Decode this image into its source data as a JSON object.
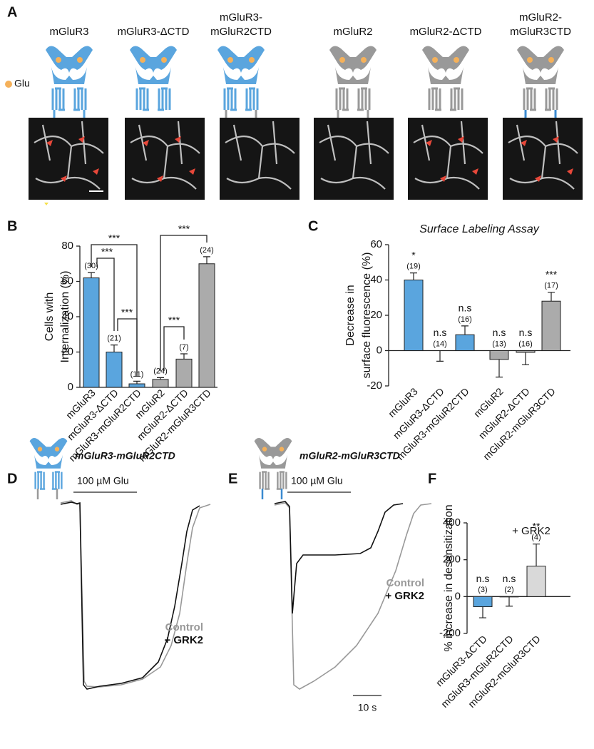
{
  "figure": {
    "panel_labels": [
      "A",
      "B",
      "C",
      "D",
      "E",
      "F"
    ]
  },
  "panel_a": {
    "constructs": [
      [
        "mGluR3"
      ],
      [
        "mGluR3-ΔCTD"
      ],
      [
        "mGluR3-",
        "mGluR2CTD"
      ],
      [
        "mGluR2"
      ],
      [
        "mGluR2-ΔCTD"
      ],
      [
        "mGluR2-",
        "mGluR3CTD"
      ]
    ],
    "legend": "Glu"
  },
  "chart_data": [
    {
      "type": "bar",
      "y_label": [
        "Cells with",
        "Internalization (%)"
      ],
      "categories": [
        "mGluR3",
        "mGluR3-ΔCTD",
        "mGluR3-mGluR2CTD",
        "mGluR2",
        "mGluR2-ΔCTD",
        "mGluR2-mGluR3CTD"
      ],
      "values": [
        62,
        20,
        2,
        4.5,
        16,
        70
      ],
      "errors": [
        3,
        4,
        1.5,
        1,
        3,
        4
      ],
      "colors": [
        "#5aa5de",
        "#5aa5de",
        "#5aa5de",
        "#ababab",
        "#ababab",
        "#ababab"
      ],
      "n_labels": [
        "(30)",
        "(21)",
        "(11)",
        "(24)",
        "(7)",
        "(24)"
      ],
      "annotations": [
        "***",
        "***",
        "***",
        "***",
        "***"
      ],
      "ylim": [
        0,
        80
      ],
      "yticks": [
        0,
        20,
        40,
        60,
        80
      ]
    },
    {
      "type": "bar",
      "title": "Surface Labeling Assay",
      "y_label": [
        "Decrease in",
        "surface fluorescence (%)"
      ],
      "categories": [
        "mGluR3",
        "mGluR3-ΔCTD",
        "mGluR3-mGluR2CTD",
        "mGluR2",
        "mGluR2-ΔCTD",
        "mGluR2-mGluR3CTD"
      ],
      "values": [
        40,
        0,
        9,
        -5,
        -1,
        28
      ],
      "errors": [
        4,
        6,
        5,
        10,
        7,
        5
      ],
      "colors": [
        "#5aa5de",
        "#5aa5de",
        "#5aa5de",
        "#ababab",
        "#ababab",
        "#ababab"
      ],
      "sig_labels": [
        "*",
        "n.s",
        "n.s",
        "n.s",
        "n.s",
        "***"
      ],
      "n_labels": [
        "(19)",
        "(14)",
        "(16)",
        "(13)",
        "(16)",
        "(17)"
      ],
      "ylim": [
        -20,
        60
      ],
      "yticks": [
        -20,
        0,
        20,
        40,
        60
      ]
    },
    {
      "type": "bar",
      "title": "+ GRK2",
      "y_label": [
        "% increase in desensitization"
      ],
      "categories": [
        "mGluR3-ΔCTD",
        "mGluR3-mGluR2CTD",
        "mGluR2-mGluR3CTD"
      ],
      "values": [
        -55,
        -2,
        165
      ],
      "errors": [
        60,
        50,
        120
      ],
      "colors": [
        "#5aa5de",
        "#ffffff",
        "#d9d9d9"
      ],
      "sig_labels": [
        "n.s",
        "n.s",
        "**"
      ],
      "n_labels": [
        "(3)",
        "(2)",
        "(4)"
      ],
      "ylim": [
        -200,
        400
      ],
      "yticks": [
        -200,
        0,
        200,
        400
      ]
    }
  ],
  "panel_d": {
    "title": "mGluR3-mGluR2CTD",
    "stimulus": "100 µM Glu",
    "legend": [
      "Control",
      "+ GRK2"
    ]
  },
  "panel_e": {
    "title": "mGluR2-mGluR3CTD",
    "stimulus": "100 µM Glu",
    "legend": [
      "Control",
      "+ GRK2"
    ],
    "scale_bar": "10 s"
  }
}
